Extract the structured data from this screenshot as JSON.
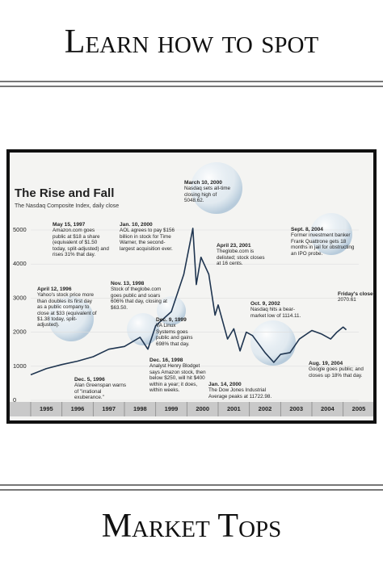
{
  "header": {
    "title": "Learn how to spot"
  },
  "footer": {
    "title": "Market Tops"
  },
  "chart_data": {
    "type": "line",
    "title": "The Rise and Fall",
    "subtitle": "The Nasdaq Composite Index, daily close",
    "x": [
      1995.0,
      1995.5,
      1996.0,
      1996.5,
      1997.0,
      1997.5,
      1998.0,
      1998.5,
      1998.75,
      1999.0,
      1999.5,
      1999.9,
      2000.19,
      2000.3,
      2000.45,
      2000.7,
      2000.9,
      2001.0,
      2001.3,
      2001.5,
      2001.7,
      2001.9,
      2002.1,
      2002.5,
      2002.78,
      2003.0,
      2003.3,
      2003.6,
      2004.0,
      2004.3,
      2004.6,
      2004.8,
      2005.0,
      2005.1
    ],
    "series": [
      {
        "name": "Nasdaq Composite",
        "color": "#1f3550",
        "values": [
          750,
          930,
          1050,
          1150,
          1280,
          1500,
          1580,
          1850,
          1500,
          2190,
          2600,
          3700,
          5048.62,
          3400,
          4200,
          3700,
          2500,
          2800,
          1800,
          2100,
          1450,
          2000,
          1900,
          1400,
          1114.11,
          1350,
          1400,
          1800,
          2050,
          1950,
          1800,
          2000,
          2150,
          2070.61
        ]
      }
    ],
    "xlim": [
      1995,
      2005.5
    ],
    "xticks": [
      1995,
      1996,
      1997,
      1998,
      1999,
      2000,
      2001,
      2002,
      2003,
      2004,
      2005
    ],
    "ylim": [
      0,
      5000
    ],
    "yticks": [
      0,
      1000,
      2000,
      3000,
      4000,
      5000
    ],
    "annotations": [
      {
        "date": "May 15, 1997",
        "text": "Amazon.com goes public at $18 a share (equivalent of $1.50 today, split-adjusted) and rises 31% that day."
      },
      {
        "date": "Jan. 10, 2000",
        "text": "AOL agrees to pay $156 billion in stock for Time Warner, the second-largest acquisition ever."
      },
      {
        "date": "March 10, 2000",
        "text": "Nasdaq sets all-time closing high of 5048.62."
      },
      {
        "date": "Sept. 8, 2004",
        "text": "Former investment banker Frank Quattrone gets 18 months in jail for obstructing an IPO probe."
      },
      {
        "date": "April 23, 2001",
        "text": "Theglobe.com is delisted; stock closes at 16 cents."
      },
      {
        "date": "April 12, 1996",
        "text": "Yahoo's stock price more than doubles its first day as a public company to close at $33 (equivalent of $1.38 today, split-adjusted)."
      },
      {
        "date": "Nov. 13, 1998",
        "text": "Stock of theglobe.com goes public and soars 606% that day, closing at $63.50."
      },
      {
        "date": "Dec. 9, 1999",
        "text": "VA Linux Systems goes public and gains 698% that day."
      },
      {
        "date": "Oct. 9, 2002",
        "text": "Nasdaq hits a bear-market low of 1114.11."
      },
      {
        "date": "Friday's close:",
        "text": "2070.61"
      },
      {
        "date": "Dec. 5, 1996",
        "text": "Alan Greenspan warns of \"irrational exuberance.\""
      },
      {
        "date": "Dec. 16, 1998",
        "text": "Analyst Henry Blodget says Amazon stock, then below $250, will hit $400 within a year; it does, within weeks."
      },
      {
        "date": "Jan. 14, 2000",
        "text": "The Dow Jones Industrial Average peaks at 11722.98."
      },
      {
        "date": "Aug. 19, 2004",
        "text": "Google goes public; and closes up 18% that day."
      }
    ]
  }
}
